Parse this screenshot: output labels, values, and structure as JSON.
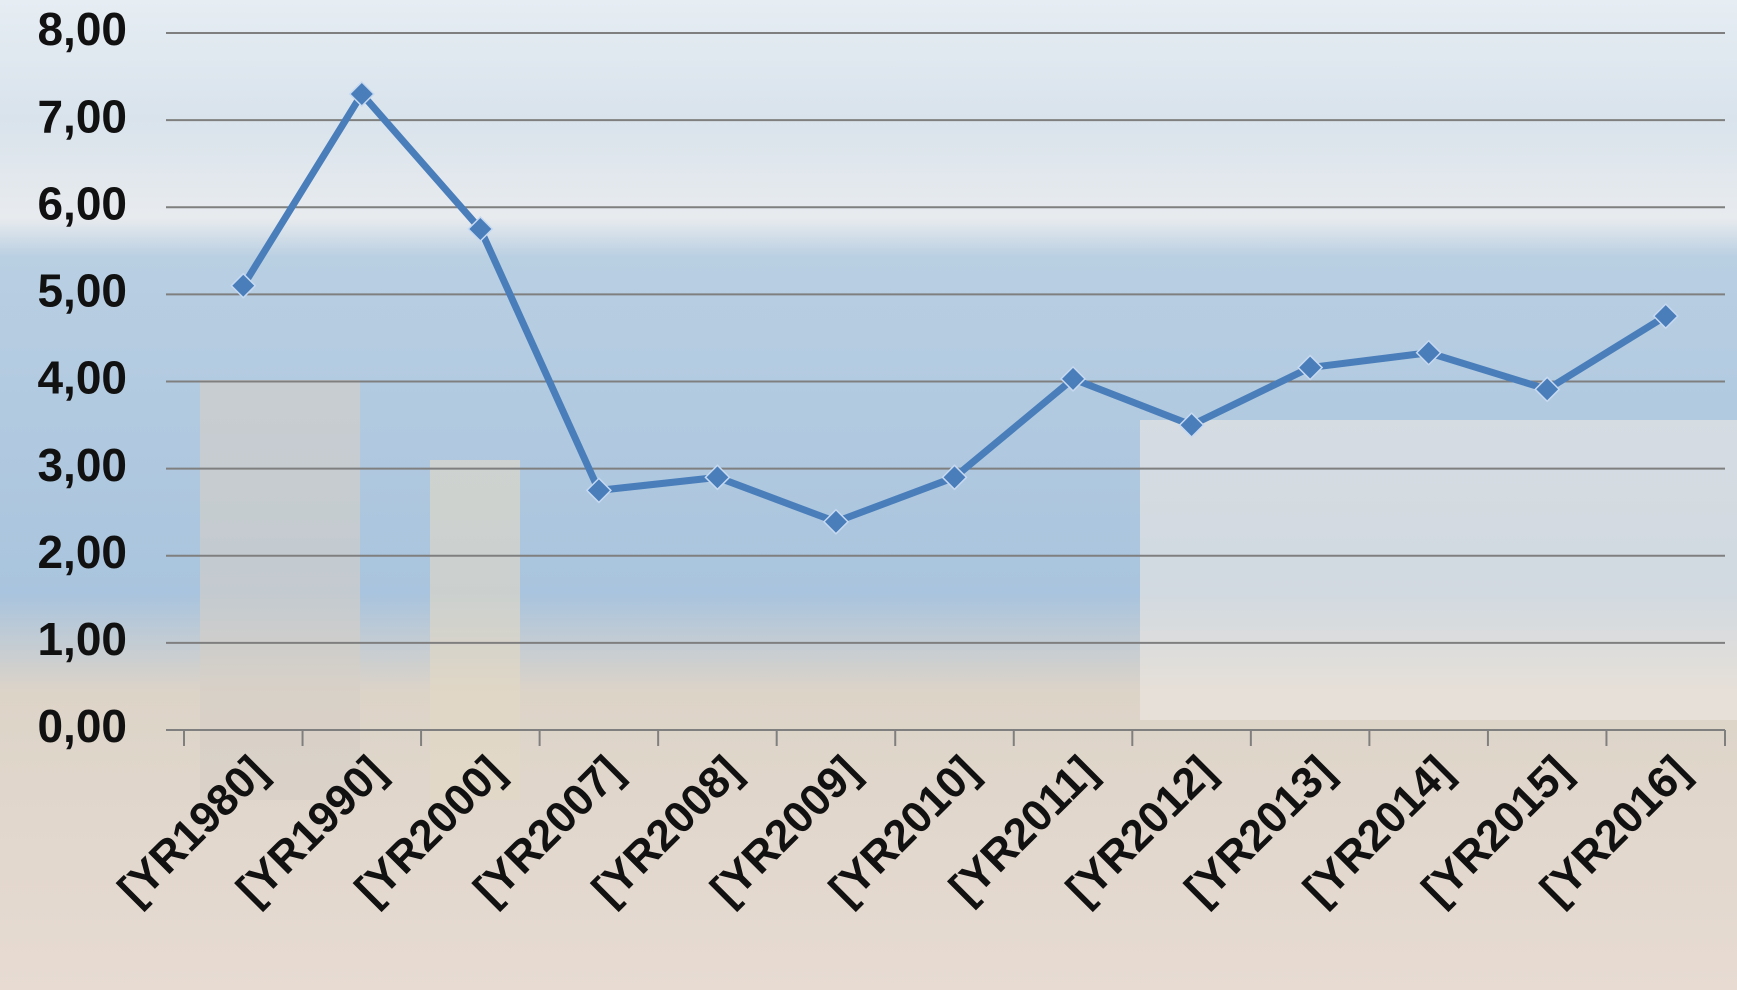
{
  "chart_data": {
    "type": "line",
    "categories": [
      "[YR1980]",
      "[YR1990]",
      "[YR2000]",
      "[YR2007]",
      "[YR2008]",
      "[YR2009]",
      "[YR2010]",
      "[YR2011]",
      "[YR2012]",
      "[YR2013]",
      "[YR2014]",
      "[YR2015]",
      "[YR2016]"
    ],
    "series": [
      {
        "color": "#4a7ebb",
        "values": [
          5.1,
          7.3,
          5.75,
          2.75,
          2.9,
          2.39,
          2.9,
          4.03,
          3.5,
          4.16,
          4.33,
          3.91,
          4.75
        ]
      }
    ],
    "ylim": [
      0,
      8
    ],
    "yticks": [
      {
        "value": 0,
        "label": "0,00"
      },
      {
        "value": 1,
        "label": "1,00"
      },
      {
        "value": 2,
        "label": "2,00"
      },
      {
        "value": 3,
        "label": "3,00"
      },
      {
        "value": 4,
        "label": "4,00"
      },
      {
        "value": 5,
        "label": "5,00"
      },
      {
        "value": 6,
        "label": "6,00"
      },
      {
        "value": 7,
        "label": "7,00"
      },
      {
        "value": 8,
        "label": "8,00"
      }
    ],
    "grid": true
  }
}
